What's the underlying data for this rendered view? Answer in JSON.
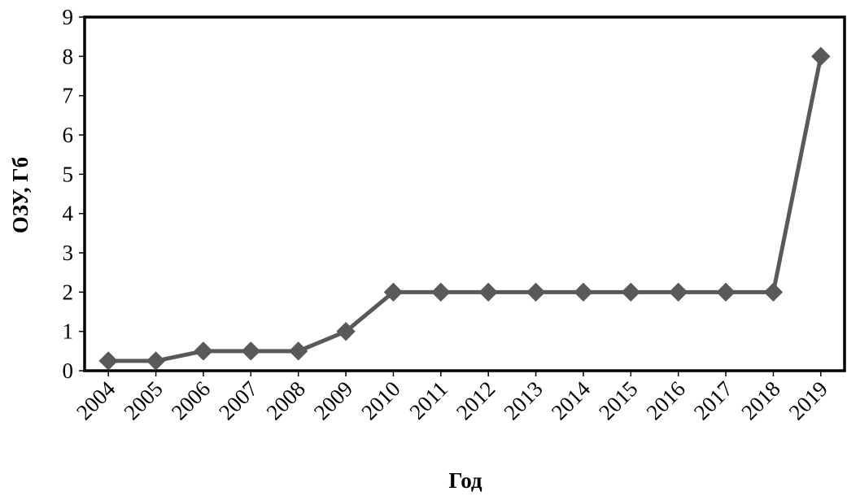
{
  "chart_data": {
    "type": "line",
    "title": "",
    "xlabel": "Год",
    "ylabel": "ОЗУ, Гб",
    "ylim": [
      0,
      9
    ],
    "yticks": [
      0,
      1,
      2,
      3,
      4,
      5,
      6,
      7,
      8,
      9
    ],
    "grid": false,
    "legend": "none",
    "categories": [
      "2004",
      "2005",
      "2006",
      "2007",
      "2008",
      "2009",
      "2010",
      "2011",
      "2012",
      "2013",
      "2014",
      "2015",
      "2016",
      "2017",
      "2018",
      "2019"
    ],
    "series": [
      {
        "values": [
          0.25,
          0.25,
          0.5,
          0.5,
          0.5,
          1,
          2,
          2,
          2,
          2,
          2,
          2,
          2,
          2,
          2,
          8
        ],
        "color": "#595959",
        "marker": "diamond"
      }
    ]
  }
}
